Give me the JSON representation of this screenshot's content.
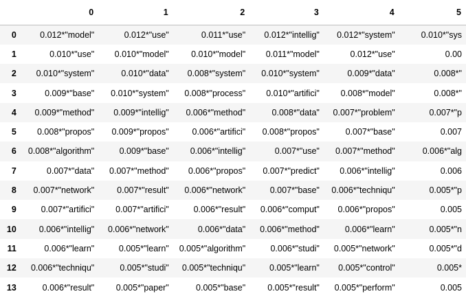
{
  "columns": [
    "",
    "0",
    "1",
    "2",
    "3",
    "4",
    "5"
  ],
  "rows": [
    {
      "index": "0",
      "cells": [
        "0.012*\"model\"",
        "0.012*\"use\"",
        "0.011*\"use\"",
        "0.012*\"intellig\"",
        "0.012*\"system\"",
        "0.010*\"sys"
      ]
    },
    {
      "index": "1",
      "cells": [
        "0.010*\"use\"",
        "0.010*\"model\"",
        "0.010*\"model\"",
        "0.011*\"model\"",
        "0.012*\"use\"",
        "0.00"
      ]
    },
    {
      "index": "2",
      "cells": [
        "0.010*\"system\"",
        "0.010*\"data\"",
        "0.008*\"system\"",
        "0.010*\"system\"",
        "0.009*\"data\"",
        "0.008*\""
      ]
    },
    {
      "index": "3",
      "cells": [
        "0.009*\"base\"",
        "0.010*\"system\"",
        "0.008*\"process\"",
        "0.010*\"artifici\"",
        "0.008*\"model\"",
        "0.008*\""
      ]
    },
    {
      "index": "4",
      "cells": [
        "0.009*\"method\"",
        "0.009*\"intellig\"",
        "0.006*\"method\"",
        "0.008*\"data\"",
        "0.007*\"problem\"",
        "0.007*\"p"
      ]
    },
    {
      "index": "5",
      "cells": [
        "0.008*\"propos\"",
        "0.009*\"propos\"",
        "0.006*\"artifici\"",
        "0.008*\"propos\"",
        "0.007*\"base\"",
        "0.007"
      ]
    },
    {
      "index": "6",
      "cells": [
        "0.008*\"algorithm\"",
        "0.009*\"base\"",
        "0.006*\"intellig\"",
        "0.007*\"use\"",
        "0.007*\"method\"",
        "0.006*\"alg"
      ]
    },
    {
      "index": "7",
      "cells": [
        "0.007*\"data\"",
        "0.007*\"method\"",
        "0.006*\"propos\"",
        "0.007*\"predict\"",
        "0.006*\"intellig\"",
        "0.006"
      ]
    },
    {
      "index": "8",
      "cells": [
        "0.007*\"network\"",
        "0.007*\"result\"",
        "0.006*\"network\"",
        "0.007*\"base\"",
        "0.006*\"techniqu\"",
        "0.005*\"p"
      ]
    },
    {
      "index": "9",
      "cells": [
        "0.007*\"artifici\"",
        "0.007*\"artifici\"",
        "0.006*\"result\"",
        "0.006*\"comput\"",
        "0.006*\"propos\"",
        "0.005"
      ]
    },
    {
      "index": "10",
      "cells": [
        "0.006*\"intellig\"",
        "0.006*\"network\"",
        "0.006*\"data\"",
        "0.006*\"method\"",
        "0.006*\"learn\"",
        "0.005*\"n"
      ]
    },
    {
      "index": "11",
      "cells": [
        "0.006*\"learn\"",
        "0.005*\"learn\"",
        "0.005*\"algorithm\"",
        "0.006*\"studi\"",
        "0.005*\"network\"",
        "0.005*\"d"
      ]
    },
    {
      "index": "12",
      "cells": [
        "0.006*\"techniqu\"",
        "0.005*\"studi\"",
        "0.005*\"techniqu\"",
        "0.005*\"learn\"",
        "0.005*\"control\"",
        "0.005*"
      ]
    },
    {
      "index": "13",
      "cells": [
        "0.006*\"result\"",
        "0.005*\"paper\"",
        "0.005*\"base\"",
        "0.005*\"result\"",
        "0.005*\"perform\"",
        "0.005"
      ]
    }
  ]
}
